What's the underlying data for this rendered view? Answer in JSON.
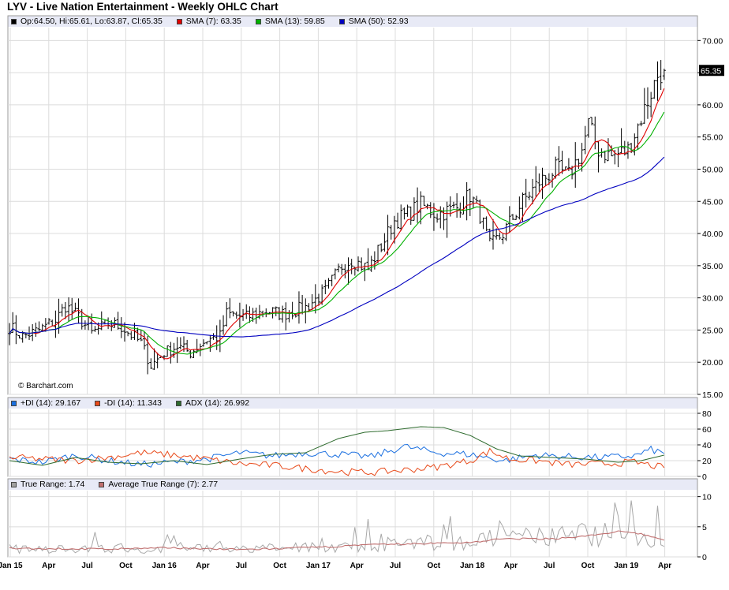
{
  "title": "LYV - Live Nation Entertainment - Weekly OHLC Chart",
  "watermark": "© Barchart.com",
  "price_legend": [
    {
      "label": "Op:64.50, Hi:65.61, Lo:63.87, Cl:65.35",
      "color": "#000000"
    },
    {
      "label": "SMA (7): 63.35",
      "color": "#e00000"
    },
    {
      "label": "SMA (13): 59.85",
      "color": "#00b000"
    },
    {
      "label": "SMA (50): 52.93",
      "color": "#0000c0"
    }
  ],
  "dmi_legend": [
    {
      "label": "+DI (14): 29.167",
      "color": "#1a6fe0"
    },
    {
      "label": "-DI (14): 11.343",
      "color": "#e84a1a"
    },
    {
      "label": "ADX (14): 26.992",
      "color": "#2e6b2e"
    }
  ],
  "tr_legend": [
    {
      "label": "True Range: 1.74",
      "color": "#a0a0a0"
    },
    {
      "label": "Average True Range (7): 2.77",
      "color": "#c07070"
    }
  ],
  "last_price_label": "65.35",
  "x_axis_labels": [
    "Jan 15",
    "Apr",
    "Jul",
    "Oct",
    "Jan 16",
    "Apr",
    "Jul",
    "Oct",
    "Jan 17",
    "Apr",
    "Jul",
    "Oct",
    "Jan 18",
    "Apr",
    "Jul",
    "Oct",
    "Jan 19",
    "Apr"
  ],
  "colors": {
    "panel_bg": "#e8eaf6",
    "grid": "#d9d9d9",
    "ohlc": "#000000",
    "sma7": "#e00000",
    "sma13": "#00b000",
    "sma50": "#0000c0"
  },
  "chart_data": [
    {
      "type": "ohlc",
      "title": "LYV - Live Nation Entertainment - Weekly OHLC Chart",
      "x_ticks": [
        "Jan 15",
        "Apr",
        "Jul",
        "Oct",
        "Jan 16",
        "Apr",
        "Jul",
        "Oct",
        "Jan 17",
        "Apr",
        "Jul",
        "Oct",
        "Jan 18",
        "Apr",
        "Jul",
        "Oct",
        "Jan 19",
        "Apr"
      ],
      "y_ticks": [
        15.0,
        20.0,
        25.0,
        30.0,
        35.0,
        40.0,
        45.0,
        50.0,
        55.0,
        60.0,
        65.0,
        70.0
      ],
      "ylim": [
        15,
        72
      ],
      "grid": true,
      "close_anchors": [
        [
          0,
          25.5
        ],
        [
          4,
          24.0
        ],
        [
          9,
          25.0
        ],
        [
          14,
          26.5
        ],
        [
          17,
          28.8
        ],
        [
          21,
          27.0
        ],
        [
          25,
          24.5
        ],
        [
          30,
          26.0
        ],
        [
          34,
          25.5
        ],
        [
          40,
          23.0
        ],
        [
          43,
          19.5
        ],
        [
          47,
          21.5
        ],
        [
          51,
          22.5
        ],
        [
          55,
          21.5
        ],
        [
          60,
          23.5
        ],
        [
          64,
          24.0
        ],
        [
          66,
          27.5
        ],
        [
          72,
          27.0
        ],
        [
          78,
          28.0
        ],
        [
          83,
          27.5
        ],
        [
          90,
          28.5
        ],
        [
          96,
          31.0
        ],
        [
          101,
          35.0
        ],
        [
          104,
          36.0
        ],
        [
          109,
          34.5
        ],
        [
          114,
          39.0
        ],
        [
          117,
          42.0
        ],
        [
          121,
          43.0
        ],
        [
          125,
          44.5
        ],
        [
          130,
          43.0
        ],
        [
          136,
          44.0
        ],
        [
          140,
          46.0
        ],
        [
          143,
          43.0
        ],
        [
          146,
          38.0
        ],
        [
          150,
          40.0
        ],
        [
          156,
          45.0
        ],
        [
          161,
          48.0
        ],
        [
          166,
          50.0
        ],
        [
          170,
          49.0
        ],
        [
          174,
          53.0
        ],
        [
          176,
          57.0
        ],
        [
          179,
          53.0
        ],
        [
          183,
          52.0
        ],
        [
          188,
          53.0
        ],
        [
          192,
          58.0
        ],
        [
          197,
          64.5
        ],
        [
          199,
          65.35
        ]
      ],
      "last": {
        "open": 64.5,
        "high": 65.61,
        "low": 63.87,
        "close": 65.35
      },
      "series": [
        {
          "name": "SMA (7)",
          "last": 63.35
        },
        {
          "name": "SMA (13)",
          "last": 59.85
        },
        {
          "name": "SMA (50)",
          "last": 52.93
        }
      ]
    },
    {
      "type": "line",
      "y_ticks": [
        0,
        20,
        40,
        60,
        80
      ],
      "ylim": [
        0,
        85
      ],
      "series": [
        {
          "name": "+DI (14)",
          "last": 29.167,
          "anchors": [
            [
              0,
              22
            ],
            [
              10,
              18
            ],
            [
              20,
              27
            ],
            [
              30,
              20
            ],
            [
              40,
              15
            ],
            [
              50,
              18
            ],
            [
              60,
              22
            ],
            [
              70,
              30
            ],
            [
              80,
              26
            ],
            [
              90,
              30
            ],
            [
              100,
              28
            ],
            [
              110,
              25
            ],
            [
              120,
              38
            ],
            [
              130,
              30
            ],
            [
              140,
              28
            ],
            [
              150,
              20
            ],
            [
              160,
              27
            ],
            [
              170,
              25
            ],
            [
              180,
              24
            ],
            [
              190,
              26
            ],
            [
              195,
              34
            ],
            [
              199,
              29
            ]
          ]
        },
        {
          "name": "-DI (14)",
          "last": 11.343,
          "anchors": [
            [
              0,
              24
            ],
            [
              10,
              22
            ],
            [
              20,
              20
            ],
            [
              30,
              24
            ],
            [
              40,
              30
            ],
            [
              50,
              27
            ],
            [
              60,
              22
            ],
            [
              70,
              16
            ],
            [
              80,
              14
            ],
            [
              90,
              10
            ],
            [
              100,
              6
            ],
            [
              110,
              5
            ],
            [
              120,
              8
            ],
            [
              130,
              12
            ],
            [
              140,
              20
            ],
            [
              146,
              32
            ],
            [
              152,
              22
            ],
            [
              160,
              20
            ],
            [
              170,
              15
            ],
            [
              180,
              16
            ],
            [
              190,
              18
            ],
            [
              199,
              11
            ]
          ]
        },
        {
          "name": "ADX (14)",
          "last": 26.992,
          "anchors": [
            [
              0,
              20
            ],
            [
              10,
              14
            ],
            [
              20,
              24
            ],
            [
              30,
              18
            ],
            [
              40,
              16
            ],
            [
              50,
              20
            ],
            [
              60,
              15
            ],
            [
              70,
              22
            ],
            [
              80,
              28
            ],
            [
              90,
              30
            ],
            [
              100,
              48
            ],
            [
              108,
              56
            ],
            [
              115,
              58
            ],
            [
              125,
              63
            ],
            [
              132,
              62
            ],
            [
              140,
              52
            ],
            [
              148,
              35
            ],
            [
              155,
              26
            ],
            [
              165,
              24
            ],
            [
              175,
              22
            ],
            [
              185,
              18
            ],
            [
              192,
              20
            ],
            [
              199,
              27
            ]
          ]
        }
      ]
    },
    {
      "type": "line",
      "y_ticks": [
        0,
        5,
        10
      ],
      "ylim": [
        0,
        11
      ],
      "series": [
        {
          "name": "True Range",
          "last": 1.74
        },
        {
          "name": "Average True Range (7)",
          "last": 2.77,
          "anchors": [
            [
              0,
              1.4
            ],
            [
              30,
              1.3
            ],
            [
              50,
              1.5
            ],
            [
              70,
              1.2
            ],
            [
              90,
              1.5
            ],
            [
              110,
              2.0
            ],
            [
              125,
              2.2
            ],
            [
              140,
              2.4
            ],
            [
              150,
              3.0
            ],
            [
              165,
              3.0
            ],
            [
              178,
              3.6
            ],
            [
              185,
              4.2
            ],
            [
              192,
              3.8
            ],
            [
              199,
              2.8
            ]
          ]
        }
      ]
    }
  ]
}
